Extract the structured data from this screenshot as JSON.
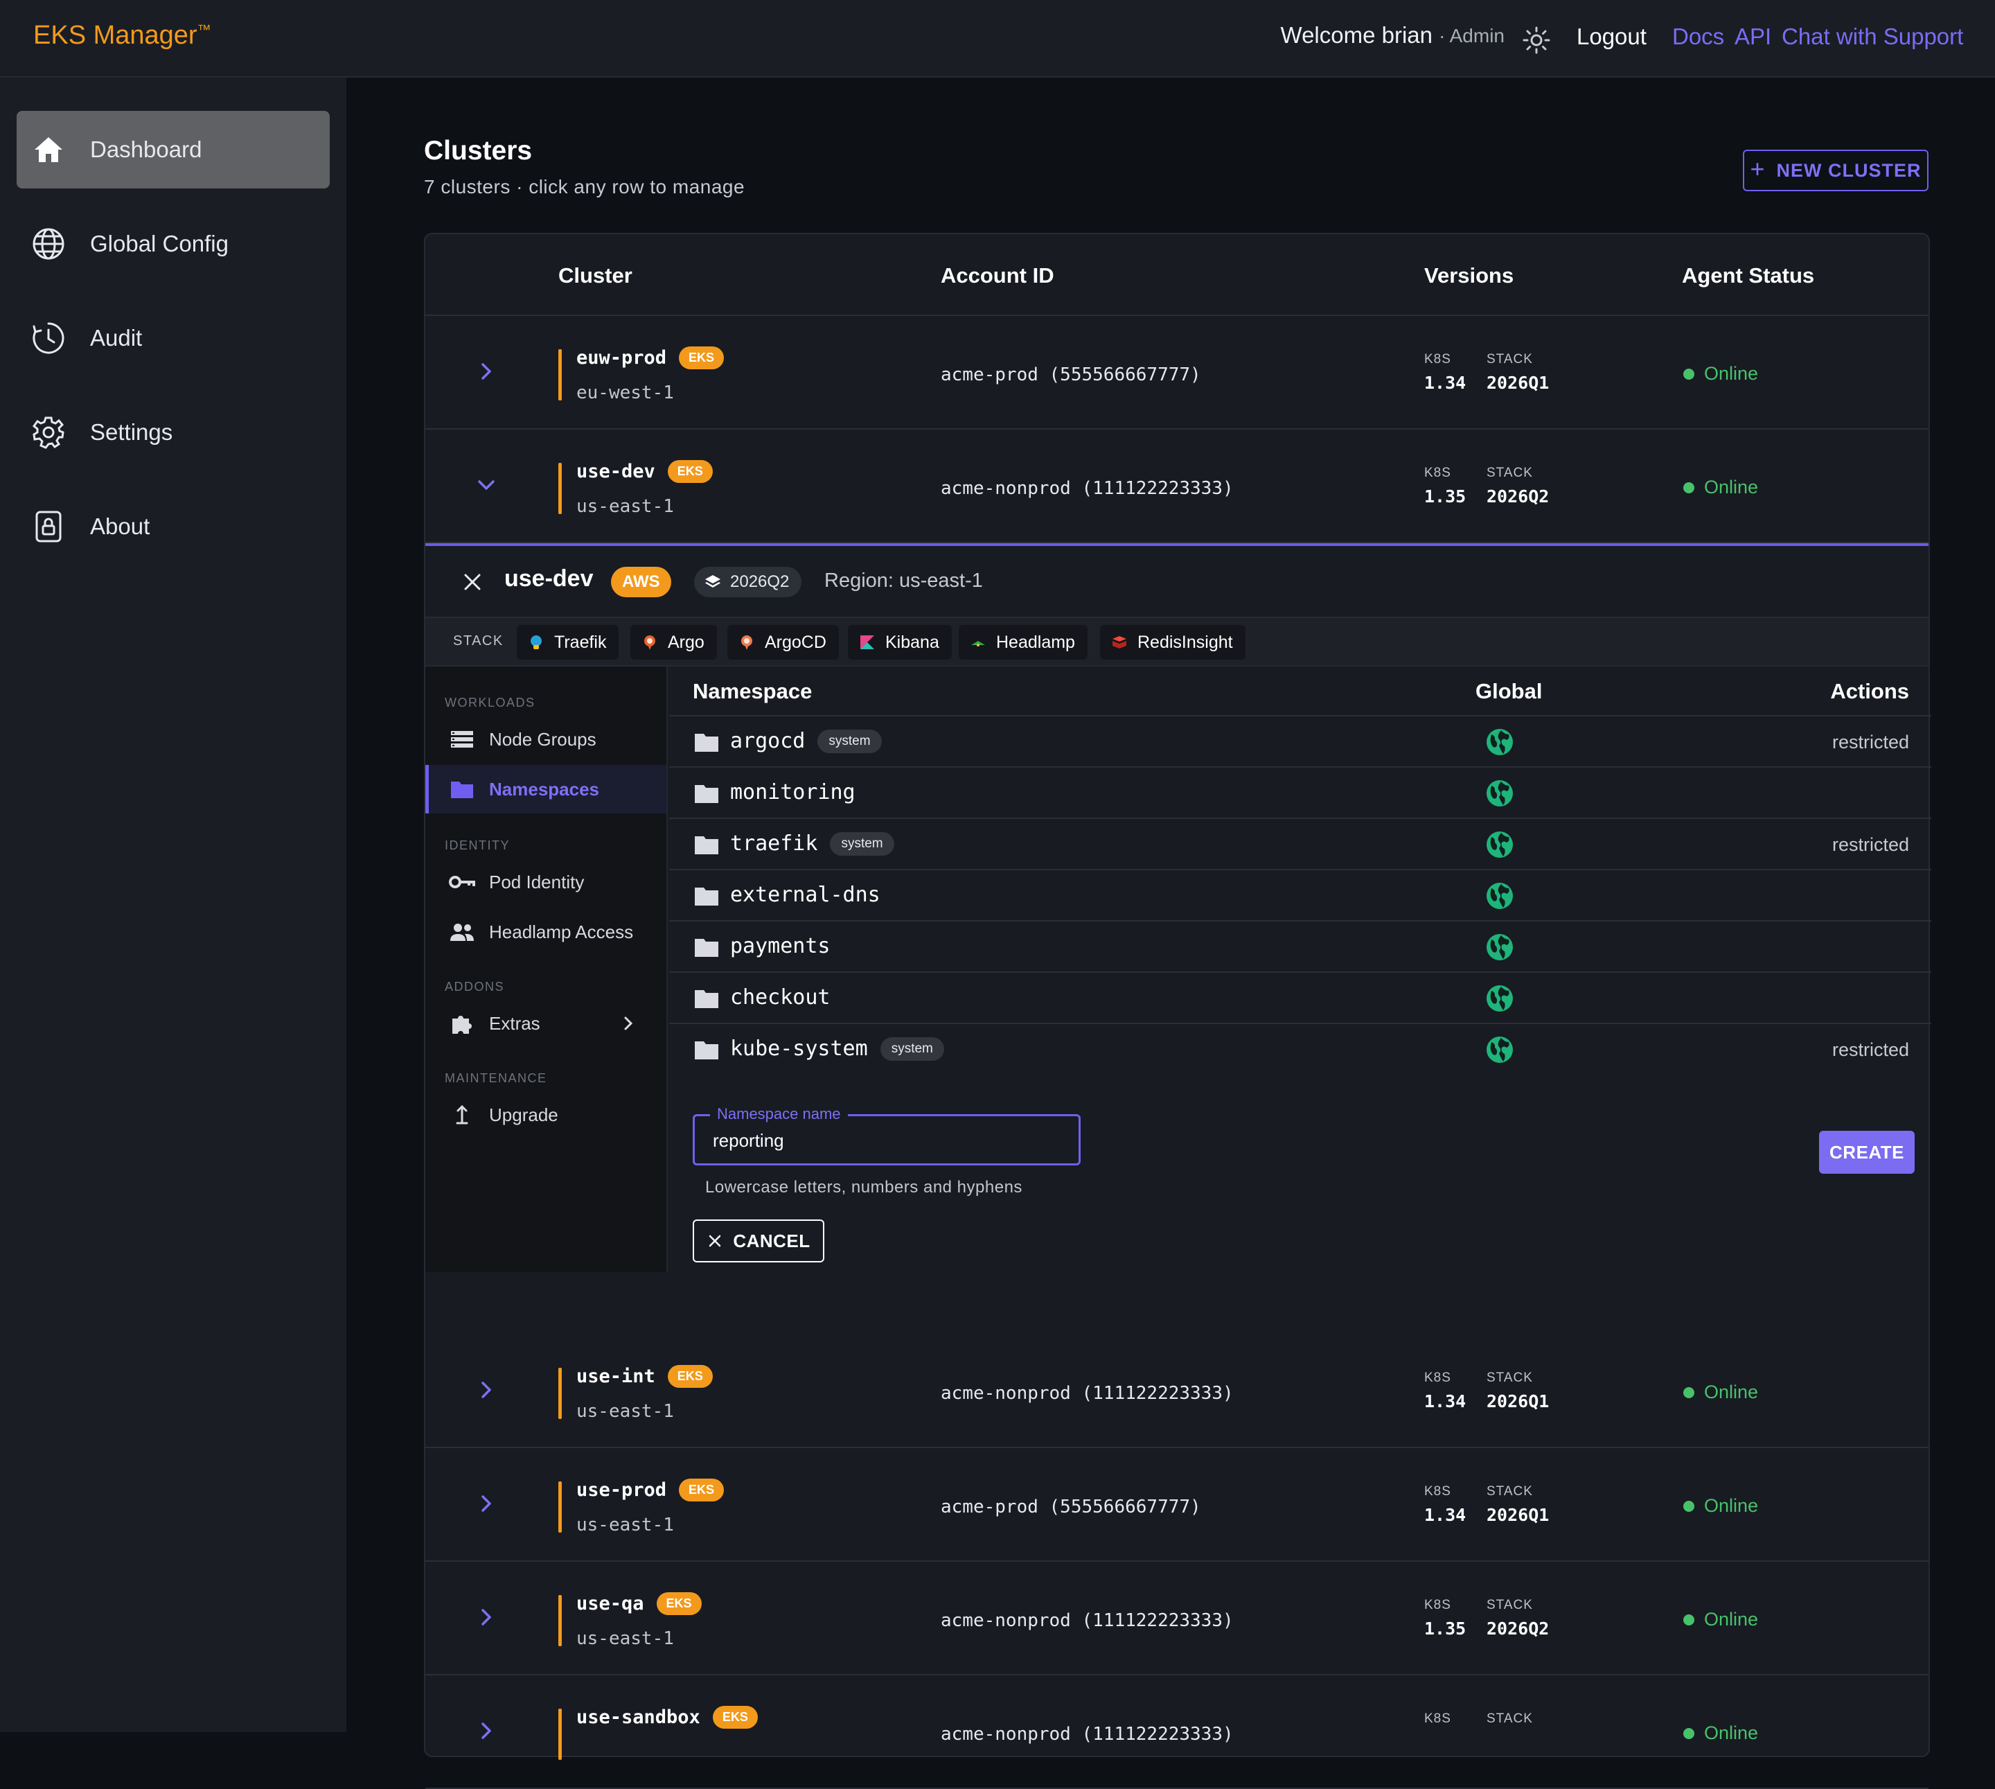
{
  "header": {
    "brand": "EKS Manager",
    "brand_mark": "™",
    "welcome": "Welcome brian",
    "role": "· Admin",
    "theme_icon": "sun-icon",
    "logout": "Logout",
    "links": [
      "Docs",
      "API",
      "Chat with Support"
    ]
  },
  "sidebar": {
    "items": [
      {
        "label": "Dashboard",
        "icon": "home-icon",
        "active": true
      },
      {
        "label": "Global Config",
        "icon": "globe-icon"
      },
      {
        "label": "Audit",
        "icon": "clock-icon"
      },
      {
        "label": "Settings",
        "icon": "gear-icon"
      },
      {
        "label": "About",
        "icon": "lock-icon"
      }
    ]
  },
  "main": {
    "title": "Clusters",
    "subtitle": "7 clusters · click any row to manage",
    "new_cluster": "NEW CLUSTER"
  },
  "table": {
    "headers": [
      "Cluster",
      "Account ID",
      "Versions",
      "Agent Status"
    ],
    "k8s_label": "K8S",
    "stack_label": "STACK",
    "rows": [
      {
        "name": "euw-prod",
        "badge": "EKS",
        "region": "eu-west-1",
        "account": "acme-prod (555566667777)",
        "k8s": "1.34",
        "stack": "2026Q1",
        "status": "Online",
        "expanded": false
      },
      {
        "name": "use-dev",
        "badge": "EKS",
        "region": "us-east-1",
        "account": "acme-nonprod (111122223333)",
        "k8s": "1.35",
        "stack": "2026Q2",
        "status": "Online",
        "expanded": true
      },
      {
        "name": "use-int",
        "badge": "EKS",
        "region": "us-east-1",
        "account": "acme-nonprod (111122223333)",
        "k8s": "1.34",
        "stack": "2026Q1",
        "status": "Online",
        "expanded": false
      },
      {
        "name": "use-prod",
        "badge": "EKS",
        "region": "us-east-1",
        "account": "acme-prod (555566667777)",
        "k8s": "1.34",
        "stack": "2026Q1",
        "status": "Online",
        "expanded": false
      },
      {
        "name": "use-qa",
        "badge": "EKS",
        "region": "us-east-1",
        "account": "acme-nonprod (111122223333)",
        "k8s": "1.35",
        "stack": "2026Q2",
        "status": "Online",
        "expanded": false
      },
      {
        "name": "use-sandbox",
        "badge": "EKS",
        "region": "",
        "account": "acme-nonprod (111122223333)",
        "k8s": "",
        "stack": "",
        "status": "Online",
        "expanded": false
      }
    ]
  },
  "detail": {
    "name": "use-dev",
    "provider": "AWS",
    "stack": "2026Q2",
    "region": "Region: us-east-1",
    "stack_label": "STACK",
    "stack_items": [
      {
        "label": "Traefik",
        "color": "#2aa0d8"
      },
      {
        "label": "Argo",
        "color": "#e8622d"
      },
      {
        "label": "ArgoCD",
        "color": "#ef7b4d"
      },
      {
        "label": "Kibana",
        "color": "#e8478b"
      },
      {
        "label": "Headlamp",
        "color": "#2fa84f"
      },
      {
        "label": "RedisInsight",
        "color": "#d82c20"
      }
    ],
    "subnav": {
      "sections": [
        {
          "title": "WORKLOADS",
          "items": [
            {
              "label": "Node Groups",
              "icon": "list-icon"
            },
            {
              "label": "Namespaces",
              "icon": "folder-icon",
              "active": true
            }
          ]
        },
        {
          "title": "IDENTITY",
          "items": [
            {
              "label": "Pod Identity",
              "icon": "key-icon"
            },
            {
              "label": "Headlamp Access",
              "icon": "people-icon"
            }
          ]
        },
        {
          "title": "ADDONS",
          "items": [
            {
              "label": "Extras",
              "icon": "puzzle-icon"
            }
          ]
        },
        {
          "title": "MAINTENANCE",
          "items": [
            {
              "label": "Upgrade",
              "icon": "upload-icon"
            }
          ]
        }
      ]
    },
    "namespaces": {
      "headers": [
        "Namespace",
        "Global",
        "Actions"
      ],
      "rows": [
        {
          "name": "argocd",
          "tag": "system",
          "action": "restricted"
        },
        {
          "name": "monitoring",
          "tag": "",
          "action": ""
        },
        {
          "name": "traefik",
          "tag": "system",
          "action": "restricted"
        },
        {
          "name": "external-dns",
          "tag": "",
          "action": ""
        },
        {
          "name": "payments",
          "tag": "",
          "action": ""
        },
        {
          "name": "checkout",
          "tag": "",
          "action": ""
        },
        {
          "name": "kube-system",
          "tag": "system",
          "action": "restricted"
        }
      ]
    },
    "form": {
      "label": "Namespace name",
      "value": "reporting",
      "help": "Lowercase letters, numbers and hyphens",
      "create": "CREATE",
      "cancel": "CANCEL"
    }
  },
  "colors": {
    "accent": "#6f5ff0",
    "brand": "#f39a1c",
    "online": "#47c26a",
    "globe": "#1fb47a"
  }
}
